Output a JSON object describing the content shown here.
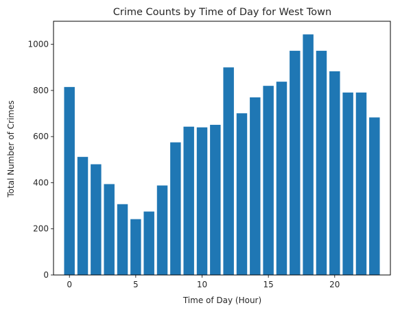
{
  "chart_data": {
    "type": "bar",
    "title": "Crime Counts by Time of Day for West Town",
    "xlabel": "Time of Day (Hour)",
    "ylabel": "Total Number of Crimes",
    "categories": [
      0,
      1,
      2,
      3,
      4,
      5,
      6,
      7,
      8,
      9,
      10,
      11,
      12,
      13,
      14,
      15,
      16,
      17,
      18,
      19,
      20,
      21,
      22,
      23
    ],
    "values": [
      815,
      512,
      480,
      394,
      307,
      242,
      275,
      388,
      575,
      643,
      640,
      651,
      900,
      701,
      770,
      820,
      838,
      972,
      1043,
      972,
      883,
      791,
      791,
      683
    ],
    "xlim": [
      -1.2,
      24.2
    ],
    "ylim": [
      0,
      1100
    ],
    "xticks": [
      0,
      5,
      10,
      15,
      20
    ],
    "yticks": [
      0,
      200,
      400,
      600,
      800,
      1000
    ],
    "bar_color": "#1f77b4",
    "grid": false,
    "legend": "none"
  }
}
